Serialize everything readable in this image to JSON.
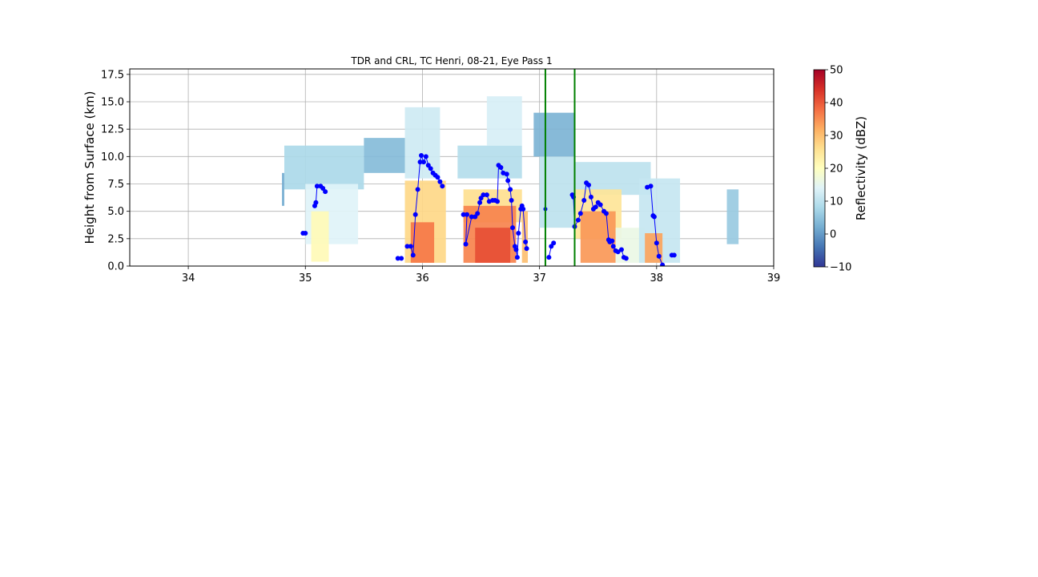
{
  "chart_data": {
    "type": "heatmap",
    "title": "TDR and CRL, TC Henri, 08-21, Eye Pass 1",
    "xlabel": "",
    "ylabel": "Height from Surface (km)",
    "xlim": [
      33.5,
      39.0
    ],
    "ylim": [
      0,
      18.0
    ],
    "x_ticks": [
      "34",
      "35",
      "36",
      "37",
      "38",
      "39"
    ],
    "y_ticks": [
      "0.0",
      "2.5",
      "5.0",
      "7.5",
      "10.0",
      "12.5",
      "15.0",
      "17.5"
    ],
    "grid": true,
    "colorbar": {
      "label": "Reflectivity (dBZ)",
      "min": -10,
      "max": 50,
      "ticks": [
        "−10",
        "0",
        "10",
        "20",
        "30",
        "40",
        "50"
      ],
      "colormap": "RdYlBu_r"
    },
    "reflectivity_cells": [
      {
        "x0": 34.8,
        "x1": 34.82,
        "y0": 5.5,
        "y1": 8.5,
        "dbz": 2
      },
      {
        "x0": 34.82,
        "x1": 35.5,
        "y0": 7.0,
        "y1": 11.0,
        "dbz": 8
      },
      {
        "x0": 35.0,
        "x1": 35.45,
        "y0": 2.0,
        "y1": 7.5,
        "dbz": 14
      },
      {
        "x0": 35.05,
        "x1": 35.2,
        "y0": 0.4,
        "y1": 5.0,
        "dbz": 21
      },
      {
        "x0": 35.5,
        "x1": 35.85,
        "y0": 8.5,
        "y1": 11.7,
        "dbz": 4
      },
      {
        "x0": 35.85,
        "x1": 36.15,
        "y0": 8.0,
        "y1": 14.5,
        "dbz": 12
      },
      {
        "x0": 35.85,
        "x1": 36.2,
        "y0": 0.3,
        "y1": 7.8,
        "dbz": 27
      },
      {
        "x0": 35.9,
        "x1": 36.1,
        "y0": 0.3,
        "y1": 4.0,
        "dbz": 37
      },
      {
        "x0": 36.3,
        "x1": 36.85,
        "y0": 8.0,
        "y1": 11.0,
        "dbz": 9
      },
      {
        "x0": 36.55,
        "x1": 36.85,
        "y0": 11.0,
        "y1": 15.5,
        "dbz": 13
      },
      {
        "x0": 36.35,
        "x1": 36.85,
        "y0": 4.0,
        "y1": 7.0,
        "dbz": 26
      },
      {
        "x0": 36.35,
        "x1": 36.8,
        "y0": 0.3,
        "y1": 5.5,
        "dbz": 36
      },
      {
        "x0": 36.45,
        "x1": 36.75,
        "y0": 0.3,
        "y1": 3.5,
        "dbz": 41
      },
      {
        "x0": 36.85,
        "x1": 36.9,
        "y0": 0.3,
        "y1": 5.0,
        "dbz": 30
      },
      {
        "x0": 36.95,
        "x1": 37.3,
        "y0": 10.0,
        "y1": 14.0,
        "dbz": 3
      },
      {
        "x0": 37.0,
        "x1": 37.3,
        "y0": 3.5,
        "y1": 10.0,
        "dbz": 10
      },
      {
        "x0": 37.3,
        "x1": 37.95,
        "y0": 6.5,
        "y1": 9.5,
        "dbz": 10
      },
      {
        "x0": 37.3,
        "x1": 37.7,
        "y0": 2.5,
        "y1": 7.0,
        "dbz": 25
      },
      {
        "x0": 37.35,
        "x1": 37.65,
        "y0": 0.3,
        "y1": 5.0,
        "dbz": 34
      },
      {
        "x0": 37.65,
        "x1": 37.9,
        "y0": 0.3,
        "y1": 3.5,
        "dbz": 16
      },
      {
        "x0": 37.85,
        "x1": 38.2,
        "y0": 0.3,
        "y1": 8.0,
        "dbz": 11
      },
      {
        "x0": 37.9,
        "x1": 38.05,
        "y0": 0.3,
        "y1": 3.0,
        "dbz": 33
      },
      {
        "x0": 38.6,
        "x1": 38.7,
        "y0": 2.0,
        "y1": 7.0,
        "dbz": 6
      }
    ],
    "series": [
      {
        "type": "line",
        "color": "#0000ff",
        "marker": "circle",
        "segments": [
          [
            [
              34.98,
              3.0
            ],
            [
              35.0,
              3.0
            ]
          ],
          [
            [
              35.08,
              5.5
            ],
            [
              35.09,
              5.8
            ],
            [
              35.1,
              7.3
            ],
            [
              35.13,
              7.3
            ],
            [
              35.15,
              7.1
            ],
            [
              35.17,
              6.8
            ]
          ],
          [
            [
              35.79,
              0.7
            ],
            [
              35.82,
              0.7
            ]
          ],
          [
            [
              35.87,
              1.8
            ],
            [
              35.9,
              1.8
            ],
            [
              35.92,
              1.0
            ],
            [
              35.94,
              4.7
            ],
            [
              35.96,
              7.0
            ],
            [
              35.98,
              9.5
            ],
            [
              35.99,
              10.1
            ],
            [
              36.01,
              9.5
            ],
            [
              36.03,
              10.0
            ],
            [
              36.05,
              9.2
            ],
            [
              36.07,
              8.9
            ],
            [
              36.09,
              8.5
            ],
            [
              36.11,
              8.3
            ],
            [
              36.13,
              8.1
            ],
            [
              36.15,
              7.7
            ],
            [
              36.17,
              7.3
            ]
          ],
          [
            [
              36.35,
              4.7
            ],
            [
              36.38,
              4.7
            ],
            [
              36.37,
              2.0
            ],
            [
              36.42,
              4.5
            ],
            [
              36.45,
              4.5
            ],
            [
              36.47,
              4.8
            ],
            [
              36.49,
              5.8
            ],
            [
              36.5,
              6.2
            ],
            [
              36.52,
              6.5
            ],
            [
              36.55,
              6.5
            ],
            [
              36.57,
              5.9
            ],
            [
              36.6,
              6.0
            ],
            [
              36.62,
              6.0
            ],
            [
              36.64,
              5.9
            ],
            [
              36.65,
              9.2
            ],
            [
              36.67,
              9.0
            ],
            [
              36.69,
              8.5
            ],
            [
              36.72,
              8.4
            ],
            [
              36.73,
              7.8
            ],
            [
              36.75,
              7.0
            ],
            [
              36.76,
              6.0
            ],
            [
              36.77,
              3.5
            ],
            [
              36.79,
              1.8
            ],
            [
              36.8,
              1.5
            ],
            [
              36.81,
              0.8
            ],
            [
              36.82,
              3.0
            ],
            [
              36.84,
              5.2
            ],
            [
              36.85,
              5.5
            ],
            [
              36.86,
              5.2
            ],
            [
              36.88,
              2.2
            ],
            [
              36.89,
              1.6
            ]
          ],
          [
            [
              37.08,
              0.8
            ],
            [
              37.1,
              1.8
            ],
            [
              37.12,
              2.1
            ]
          ],
          [
            [
              37.28,
              6.5
            ],
            [
              37.29,
              6.3
            ],
            [
              37.3,
              3.6
            ],
            [
              37.33,
              4.2
            ],
            [
              37.35,
              4.8
            ],
            [
              37.38,
              6.0
            ],
            [
              37.4,
              7.6
            ],
            [
              37.42,
              7.4
            ],
            [
              37.44,
              6.3
            ],
            [
              37.46,
              5.2
            ],
            [
              37.48,
              5.4
            ],
            [
              37.5,
              5.8
            ],
            [
              37.52,
              5.6
            ],
            [
              37.55,
              5.0
            ],
            [
              37.57,
              4.8
            ],
            [
              37.59,
              2.4
            ],
            [
              37.6,
              2.2
            ],
            [
              37.62,
              2.3
            ],
            [
              37.63,
              1.8
            ],
            [
              37.65,
              1.4
            ],
            [
              37.67,
              1.3
            ],
            [
              37.7,
              1.5
            ],
            [
              37.72,
              0.8
            ],
            [
              37.74,
              0.7
            ]
          ],
          [
            [
              37.92,
              7.2
            ],
            [
              37.95,
              7.3
            ],
            [
              37.97,
              4.6
            ],
            [
              37.98,
              4.5
            ],
            [
              38.0,
              2.1
            ],
            [
              38.02,
              0.9
            ],
            [
              38.05,
              0.1
            ]
          ],
          [
            [
              38.13,
              1.0
            ],
            [
              38.15,
              1.0
            ]
          ]
        ],
        "isolated_points": [
          [
            37.05,
            5.2
          ]
        ]
      }
    ],
    "vertical_lines": [
      {
        "x": 37.05,
        "color": "#008000"
      },
      {
        "x": 37.3,
        "color": "#008000"
      }
    ]
  }
}
